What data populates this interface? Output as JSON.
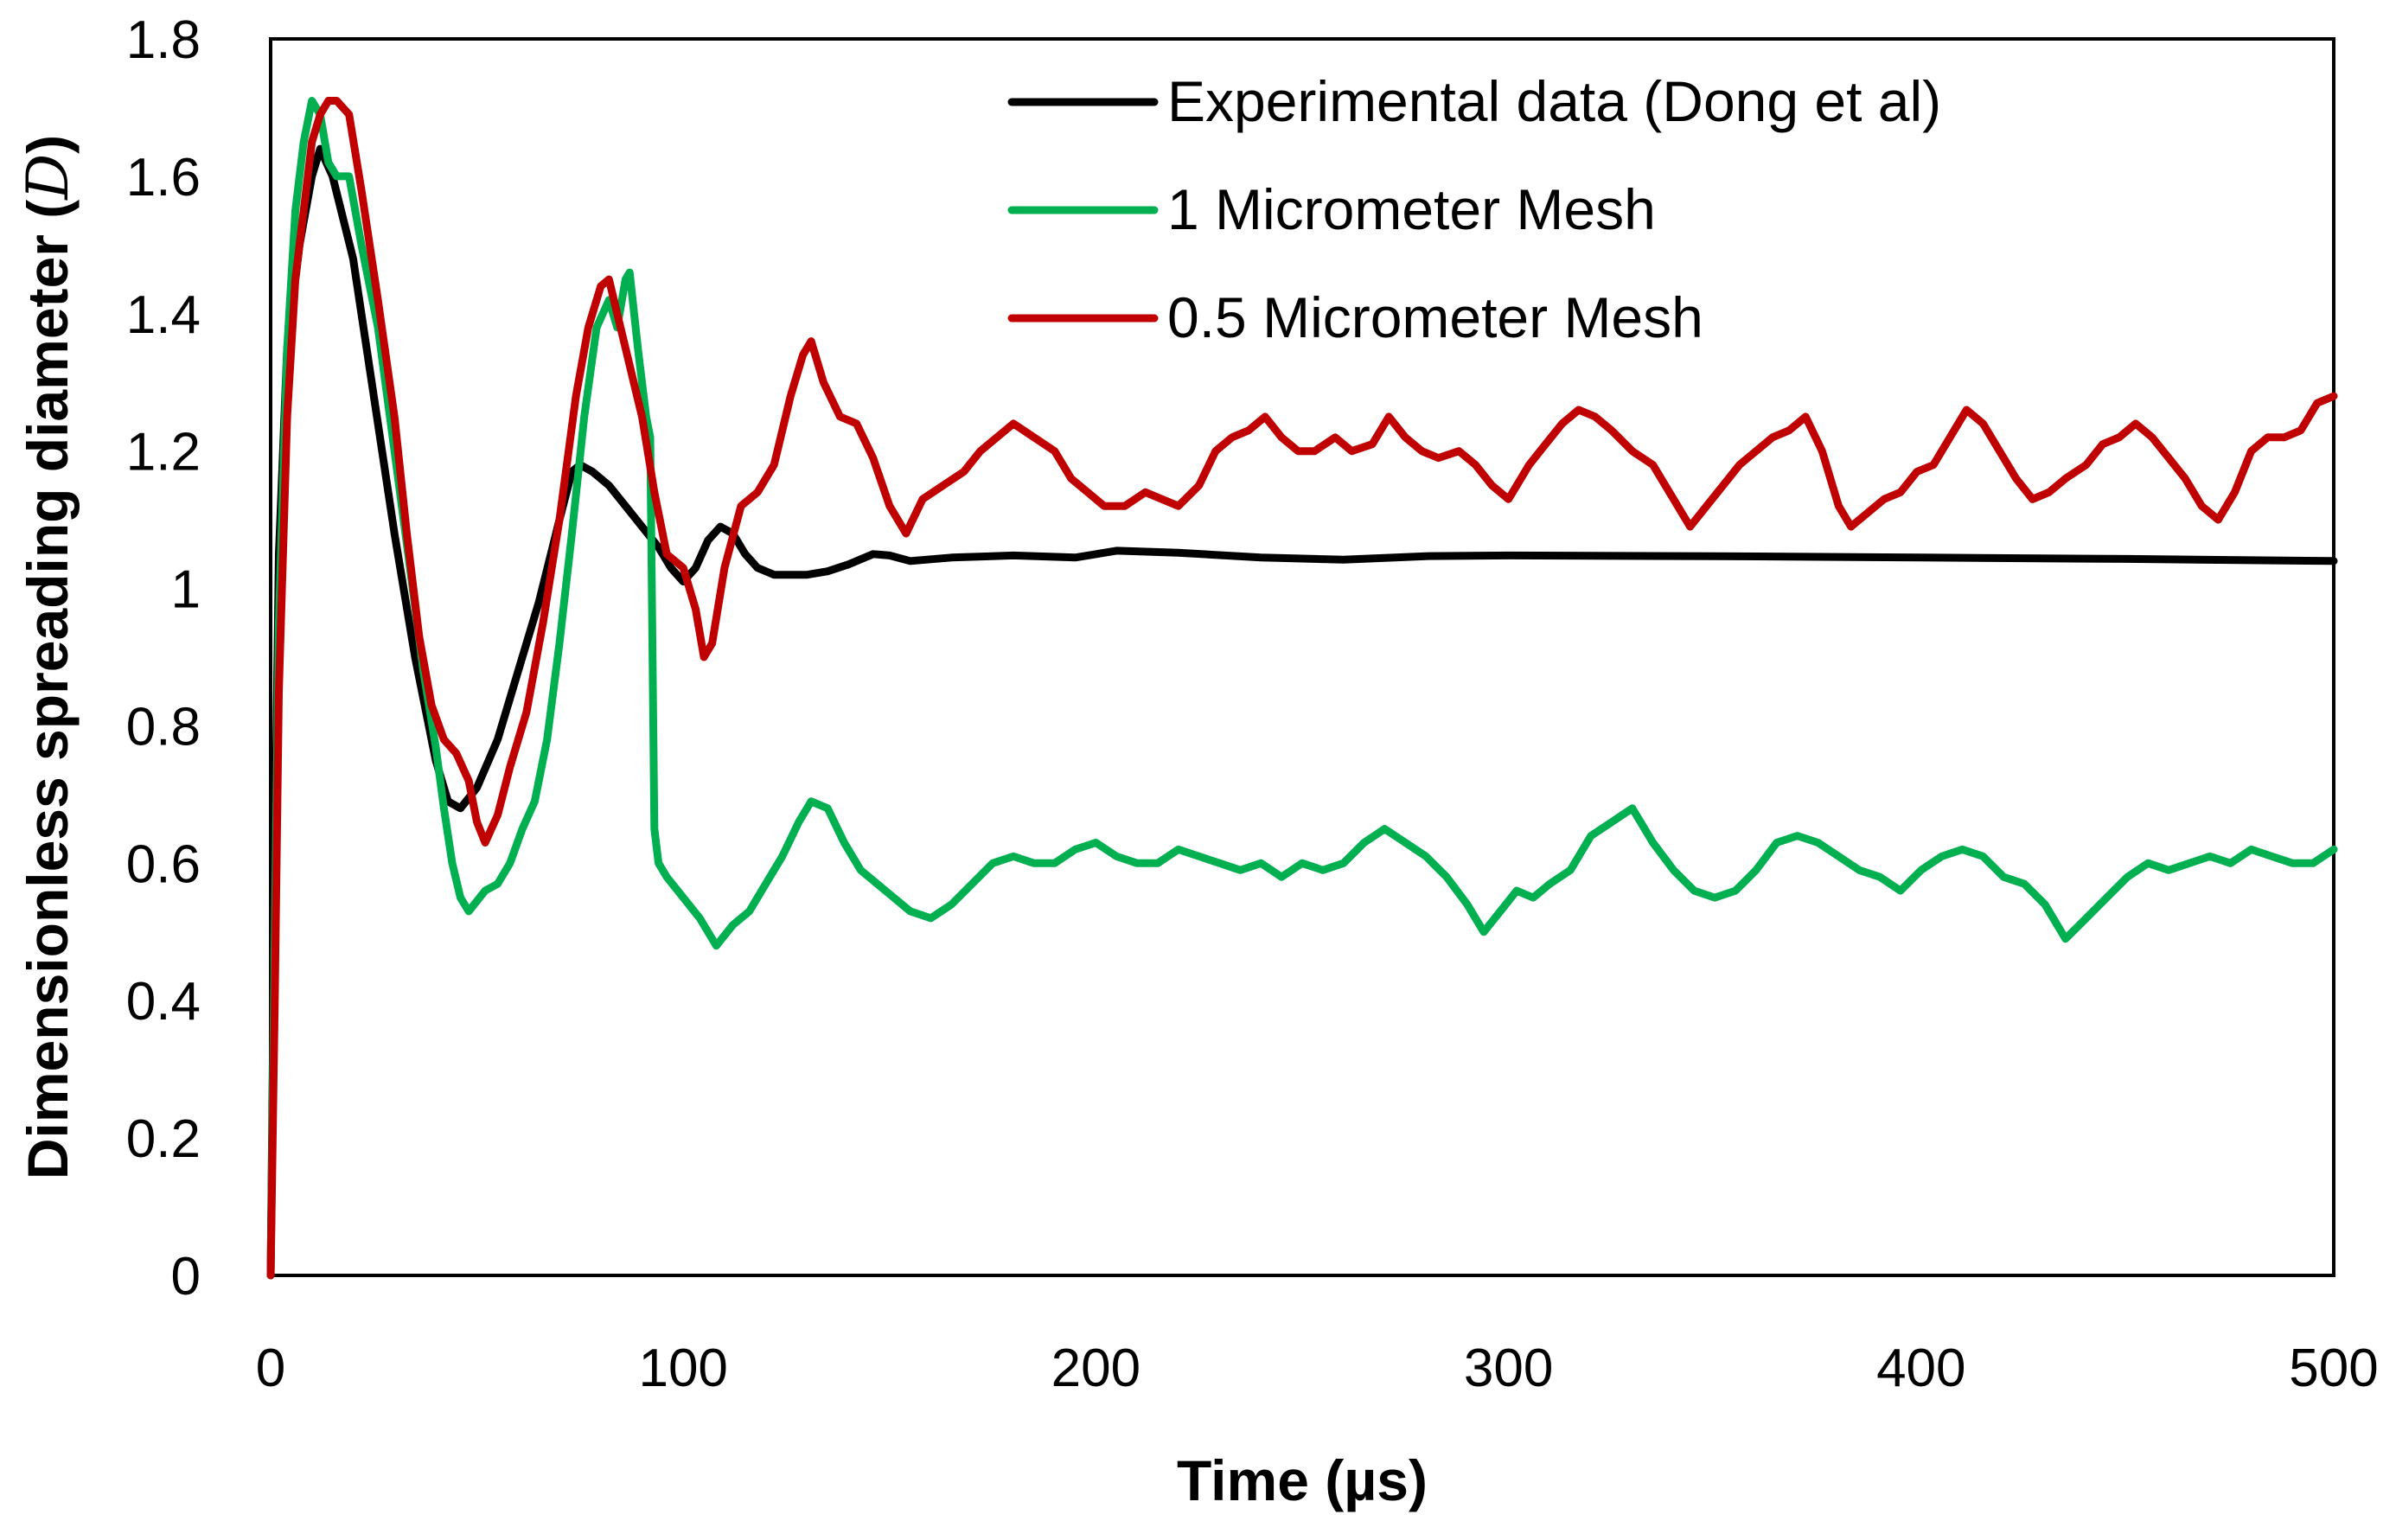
{
  "chart_data": {
    "type": "line",
    "title": "",
    "xlabel": "Time (µs)",
    "ylabel": "Dimensionless spreading diameter (",
    "ylabel_symbol": "D",
    "ylabel_close": ")",
    "xlim": [
      0,
      500
    ],
    "ylim": [
      0,
      1.8
    ],
    "xticks": [
      "0",
      "100",
      "200",
      "300",
      "400",
      "500"
    ],
    "yticks": [
      "0",
      "0.2",
      "0.4",
      "0.6",
      "0.8",
      "1",
      "1.2",
      "1.4",
      "1.6",
      "1.8"
    ],
    "grid": false,
    "legend_position": "top-right",
    "series": [
      {
        "name": "Experimental data (Dong et al)",
        "color": "#000000",
        "points": [
          [
            0,
            0
          ],
          [
            1,
            0.6
          ],
          [
            2,
            1.05
          ],
          [
            4,
            1.35
          ],
          [
            7,
            1.5
          ],
          [
            10,
            1.6
          ],
          [
            12,
            1.64
          ],
          [
            15,
            1.6
          ],
          [
            20,
            1.48
          ],
          [
            25,
            1.28
          ],
          [
            30,
            1.08
          ],
          [
            35,
            0.9
          ],
          [
            40,
            0.75
          ],
          [
            43,
            0.69
          ],
          [
            46,
            0.68
          ],
          [
            50,
            0.71
          ],
          [
            55,
            0.78
          ],
          [
            60,
            0.88
          ],
          [
            65,
            0.98
          ],
          [
            70,
            1.1
          ],
          [
            73,
            1.17
          ],
          [
            75,
            1.18
          ],
          [
            78,
            1.17
          ],
          [
            82,
            1.15
          ],
          [
            86,
            1.12
          ],
          [
            90,
            1.09
          ],
          [
            94,
            1.06
          ],
          [
            97,
            1.03
          ],
          [
            100,
            1.01
          ],
          [
            103,
            1.03
          ],
          [
            106,
            1.07
          ],
          [
            109,
            1.09
          ],
          [
            112,
            1.08
          ],
          [
            115,
            1.05
          ],
          [
            118,
            1.03
          ],
          [
            122,
            1.02
          ],
          [
            130,
            1.02
          ],
          [
            135,
            1.025
          ],
          [
            140,
            1.035
          ],
          [
            146,
            1.05
          ],
          [
            150,
            1.048
          ],
          [
            155,
            1.04
          ],
          [
            165,
            1.045
          ],
          [
            180,
            1.048
          ],
          [
            195,
            1.045
          ],
          [
            205,
            1.055
          ],
          [
            220,
            1.052
          ],
          [
            240,
            1.045
          ],
          [
            260,
            1.042
          ],
          [
            280,
            1.047
          ],
          [
            300,
            1.048
          ],
          [
            350,
            1.047
          ],
          [
            400,
            1.045
          ],
          [
            450,
            1.043
          ],
          [
            500,
            1.04
          ]
        ]
      },
      {
        "name": "1 Micrometer Mesh",
        "color": "#00b050",
        "points": [
          [
            0,
            0
          ],
          [
            1,
            0.5
          ],
          [
            2,
            0.95
          ],
          [
            4,
            1.35
          ],
          [
            6,
            1.55
          ],
          [
            8,
            1.65
          ],
          [
            10,
            1.71
          ],
          [
            12,
            1.69
          ],
          [
            14,
            1.62
          ],
          [
            16,
            1.6
          ],
          [
            19,
            1.6
          ],
          [
            22,
            1.5
          ],
          [
            26,
            1.38
          ],
          [
            30,
            1.2
          ],
          [
            34,
            1.02
          ],
          [
            37,
            0.88
          ],
          [
            40,
            0.77
          ],
          [
            42,
            0.68
          ],
          [
            44,
            0.6
          ],
          [
            46,
            0.55
          ],
          [
            48,
            0.53
          ],
          [
            52,
            0.56
          ],
          [
            55,
            0.57
          ],
          [
            58,
            0.6
          ],
          [
            61,
            0.65
          ],
          [
            64,
            0.69
          ],
          [
            67,
            0.78
          ],
          [
            70,
            0.92
          ],
          [
            73,
            1.08
          ],
          [
            76,
            1.25
          ],
          [
            79,
            1.38
          ],
          [
            82,
            1.42
          ],
          [
            84,
            1.38
          ],
          [
            86,
            1.45
          ],
          [
            87,
            1.46
          ],
          [
            89,
            1.35
          ],
          [
            91,
            1.25
          ],
          [
            92,
            1.22
          ],
          [
            93,
            0.65
          ],
          [
            94,
            0.6
          ],
          [
            96,
            0.58
          ],
          [
            100,
            0.55
          ],
          [
            104,
            0.52
          ],
          [
            108,
            0.48
          ],
          [
            112,
            0.51
          ],
          [
            116,
            0.53
          ],
          [
            120,
            0.57
          ],
          [
            124,
            0.61
          ],
          [
            128,
            0.66
          ],
          [
            131,
            0.69
          ],
          [
            135,
            0.68
          ],
          [
            139,
            0.63
          ],
          [
            143,
            0.59
          ],
          [
            147,
            0.57
          ],
          [
            151,
            0.55
          ],
          [
            155,
            0.53
          ],
          [
            160,
            0.52
          ],
          [
            165,
            0.54
          ],
          [
            170,
            0.57
          ],
          [
            175,
            0.6
          ],
          [
            180,
            0.61
          ],
          [
            185,
            0.6
          ],
          [
            190,
            0.6
          ],
          [
            195,
            0.62
          ],
          [
            200,
            0.63
          ],
          [
            205,
            0.61
          ],
          [
            210,
            0.6
          ],
          [
            215,
            0.6
          ],
          [
            220,
            0.62
          ],
          [
            225,
            0.61
          ],
          [
            230,
            0.6
          ],
          [
            235,
            0.59
          ],
          [
            240,
            0.6
          ],
          [
            245,
            0.58
          ],
          [
            250,
            0.6
          ],
          [
            255,
            0.59
          ],
          [
            260,
            0.6
          ],
          [
            265,
            0.63
          ],
          [
            270,
            0.65
          ],
          [
            275,
            0.63
          ],
          [
            280,
            0.61
          ],
          [
            285,
            0.58
          ],
          [
            290,
            0.54
          ],
          [
            294,
            0.5
          ],
          [
            298,
            0.53
          ],
          [
            302,
            0.56
          ],
          [
            306,
            0.55
          ],
          [
            310,
            0.57
          ],
          [
            315,
            0.59
          ],
          [
            320,
            0.64
          ],
          [
            325,
            0.66
          ],
          [
            330,
            0.68
          ],
          [
            335,
            0.63
          ],
          [
            340,
            0.59
          ],
          [
            345,
            0.56
          ],
          [
            350,
            0.55
          ],
          [
            355,
            0.56
          ],
          [
            360,
            0.59
          ],
          [
            365,
            0.63
          ],
          [
            370,
            0.64
          ],
          [
            375,
            0.63
          ],
          [
            380,
            0.61
          ],
          [
            385,
            0.59
          ],
          [
            390,
            0.58
          ],
          [
            395,
            0.56
          ],
          [
            400,
            0.59
          ],
          [
            405,
            0.61
          ],
          [
            410,
            0.62
          ],
          [
            415,
            0.61
          ],
          [
            420,
            0.58
          ],
          [
            425,
            0.57
          ],
          [
            430,
            0.54
          ],
          [
            435,
            0.49
          ],
          [
            440,
            0.52
          ],
          [
            445,
            0.55
          ],
          [
            450,
            0.58
          ],
          [
            455,
            0.6
          ],
          [
            460,
            0.59
          ],
          [
            465,
            0.6
          ],
          [
            470,
            0.61
          ],
          [
            475,
            0.6
          ],
          [
            480,
            0.62
          ],
          [
            485,
            0.61
          ],
          [
            490,
            0.6
          ],
          [
            495,
            0.6
          ],
          [
            500,
            0.62
          ]
        ]
      },
      {
        "name": "0.5 Micrometer Mesh",
        "color": "#c00000",
        "points": [
          [
            0,
            0
          ],
          [
            1,
            0.4
          ],
          [
            2,
            0.85
          ],
          [
            4,
            1.25
          ],
          [
            6,
            1.45
          ],
          [
            8,
            1.55
          ],
          [
            10,
            1.65
          ],
          [
            12,
            1.69
          ],
          [
            14,
            1.71
          ],
          [
            16,
            1.71
          ],
          [
            19,
            1.69
          ],
          [
            22,
            1.58
          ],
          [
            26,
            1.42
          ],
          [
            30,
            1.25
          ],
          [
            33,
            1.08
          ],
          [
            36,
            0.93
          ],
          [
            39,
            0.83
          ],
          [
            42,
            0.78
          ],
          [
            45,
            0.76
          ],
          [
            48,
            0.72
          ],
          [
            50,
            0.66
          ],
          [
            52,
            0.63
          ],
          [
            55,
            0.67
          ],
          [
            58,
            0.74
          ],
          [
            62,
            0.82
          ],
          [
            66,
            0.95
          ],
          [
            70,
            1.1
          ],
          [
            74,
            1.28
          ],
          [
            77,
            1.38
          ],
          [
            80,
            1.44
          ],
          [
            82,
            1.45
          ],
          [
            84,
            1.4
          ],
          [
            86,
            1.35
          ],
          [
            88,
            1.3
          ],
          [
            90,
            1.25
          ],
          [
            93,
            1.14
          ],
          [
            96,
            1.05
          ],
          [
            100,
            1.03
          ],
          [
            103,
            0.97
          ],
          [
            105,
            0.9
          ],
          [
            107,
            0.92
          ],
          [
            110,
            1.03
          ],
          [
            114,
            1.12
          ],
          [
            118,
            1.14
          ],
          [
            122,
            1.18
          ],
          [
            126,
            1.28
          ],
          [
            129,
            1.34
          ],
          [
            131,
            1.36
          ],
          [
            134,
            1.3
          ],
          [
            138,
            1.25
          ],
          [
            142,
            1.24
          ],
          [
            146,
            1.19
          ],
          [
            150,
            1.12
          ],
          [
            154,
            1.08
          ],
          [
            158,
            1.13
          ],
          [
            163,
            1.15
          ],
          [
            168,
            1.17
          ],
          [
            172,
            1.2
          ],
          [
            176,
            1.22
          ],
          [
            180,
            1.24
          ],
          [
            185,
            1.22
          ],
          [
            190,
            1.2
          ],
          [
            194,
            1.16
          ],
          [
            198,
            1.14
          ],
          [
            202,
            1.12
          ],
          [
            207,
            1.12
          ],
          [
            212,
            1.14
          ],
          [
            216,
            1.13
          ],
          [
            220,
            1.12
          ],
          [
            225,
            1.15
          ],
          [
            229,
            1.2
          ],
          [
            233,
            1.22
          ],
          [
            237,
            1.23
          ],
          [
            241,
            1.25
          ],
          [
            245,
            1.22
          ],
          [
            249,
            1.2
          ],
          [
            253,
            1.2
          ],
          [
            258,
            1.22
          ],
          [
            262,
            1.2
          ],
          [
            267,
            1.21
          ],
          [
            271,
            1.25
          ],
          [
            275,
            1.22
          ],
          [
            279,
            1.2
          ],
          [
            283,
            1.19
          ],
          [
            288,
            1.2
          ],
          [
            292,
            1.18
          ],
          [
            296,
            1.15
          ],
          [
            300,
            1.13
          ],
          [
            305,
            1.18
          ],
          [
            309,
            1.21
          ],
          [
            313,
            1.24
          ],
          [
            317,
            1.26
          ],
          [
            321,
            1.25
          ],
          [
            325,
            1.23
          ],
          [
            330,
            1.2
          ],
          [
            335,
            1.18
          ],
          [
            340,
            1.13
          ],
          [
            344,
            1.09
          ],
          [
            348,
            1.12
          ],
          [
            352,
            1.15
          ],
          [
            356,
            1.18
          ],
          [
            360,
            1.2
          ],
          [
            364,
            1.22
          ],
          [
            368,
            1.23
          ],
          [
            372,
            1.25
          ],
          [
            376,
            1.2
          ],
          [
            380,
            1.12
          ],
          [
            383,
            1.09
          ],
          [
            387,
            1.11
          ],
          [
            391,
            1.13
          ],
          [
            395,
            1.14
          ],
          [
            399,
            1.17
          ],
          [
            403,
            1.18
          ],
          [
            407,
            1.22
          ],
          [
            411,
            1.26
          ],
          [
            415,
            1.24
          ],
          [
            419,
            1.2
          ],
          [
            423,
            1.16
          ],
          [
            427,
            1.13
          ],
          [
            431,
            1.14
          ],
          [
            435,
            1.16
          ],
          [
            440,
            1.18
          ],
          [
            444,
            1.21
          ],
          [
            448,
            1.22
          ],
          [
            452,
            1.24
          ],
          [
            456,
            1.22
          ],
          [
            460,
            1.19
          ],
          [
            464,
            1.16
          ],
          [
            468,
            1.12
          ],
          [
            472,
            1.1
          ],
          [
            476,
            1.14
          ],
          [
            480,
            1.2
          ],
          [
            484,
            1.22
          ],
          [
            488,
            1.22
          ],
          [
            492,
            1.23
          ],
          [
            496,
            1.27
          ],
          [
            500,
            1.28
          ]
        ]
      }
    ]
  }
}
